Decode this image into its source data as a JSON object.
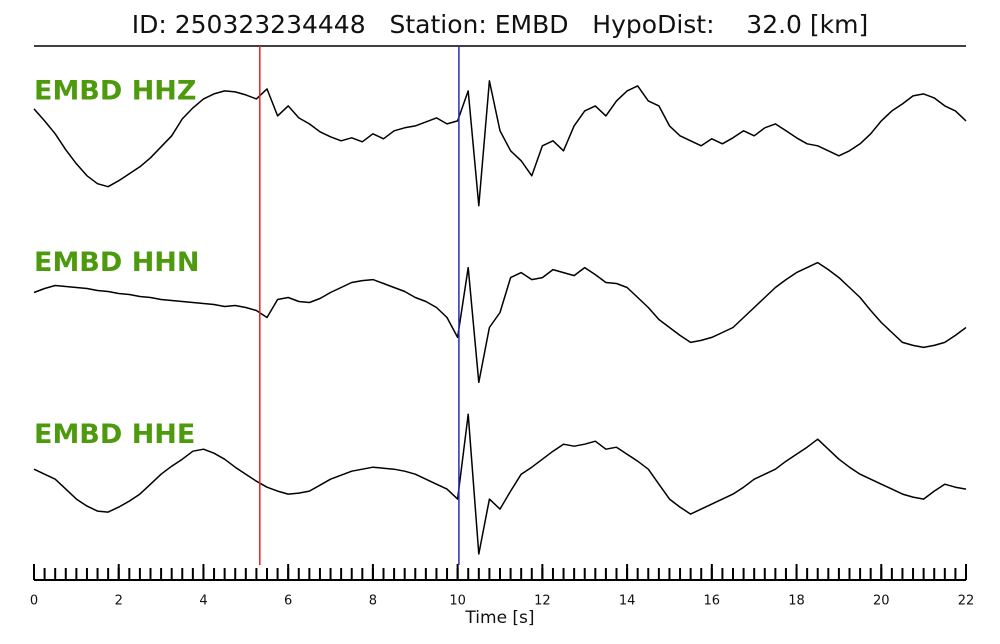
{
  "chart_data": {
    "type": "line",
    "title": "ID: 250323234448   Station: EMBD   HypoDist:    32.0 [km]",
    "xlabel": "Time [s]",
    "xlim": [
      0,
      22
    ],
    "xticks": [
      0,
      2,
      4,
      6,
      8,
      10,
      12,
      14,
      16,
      18,
      20,
      22
    ],
    "xminorticks": [
      0,
      0.25,
      0.5,
      0.75,
      1,
      1.25,
      1.5,
      1.75,
      2,
      2.25,
      2.5,
      2.75,
      3,
      3.25,
      3.5,
      3.75,
      4,
      4.25,
      4.5,
      4.75,
      5,
      5.25,
      5.5,
      5.75,
      6,
      6.25,
      6.5,
      6.75,
      7,
      7.25,
      7.5,
      7.75,
      8,
      8.25,
      8.5,
      8.75,
      9,
      9.25,
      9.5,
      9.75,
      10,
      10.25,
      10.5,
      10.75,
      11,
      11.25,
      11.5,
      11.75,
      12,
      12.25,
      12.5,
      12.75,
      13,
      13.25,
      13.5,
      13.75,
      14,
      14.25,
      14.5,
      14.75,
      15,
      15.25,
      15.5,
      15.75,
      16,
      16.25,
      16.5,
      16.75,
      17,
      17.25,
      17.5,
      17.75,
      18,
      18.25,
      18.5,
      18.75,
      19,
      19.25,
      19.5,
      19.75,
      20,
      20.25,
      20.5,
      20.75,
      21,
      21.25,
      21.5,
      21.75,
      22
    ],
    "ylim": [
      -86,
      86
    ],
    "x": [
      0,
      0.25,
      0.5,
      0.75,
      1,
      1.25,
      1.5,
      1.75,
      2,
      2.25,
      2.5,
      2.75,
      3,
      3.25,
      3.5,
      3.75,
      4,
      4.25,
      4.5,
      4.75,
      5,
      5.25,
      5.5,
      5.75,
      6,
      6.25,
      6.5,
      6.75,
      7,
      7.25,
      7.5,
      7.75,
      8,
      8.25,
      8.5,
      8.75,
      9,
      9.25,
      9.5,
      9.75,
      10,
      10.25,
      10.5,
      10.75,
      11,
      11.25,
      11.5,
      11.75,
      12,
      12.25,
      12.5,
      12.75,
      13,
      13.25,
      13.5,
      13.75,
      14,
      14.25,
      14.5,
      14.75,
      15,
      15.25,
      15.5,
      15.75,
      16,
      16.25,
      16.5,
      16.75,
      17,
      17.25,
      17.5,
      17.75,
      18,
      18.25,
      18.5,
      18.75,
      19,
      19.25,
      19.5,
      19.75,
      20,
      20.25,
      20.5,
      20.75,
      21,
      21.25,
      21.5,
      21.75,
      22
    ],
    "label_color": "#4d9a0f",
    "series": [
      {
        "name": "EMBD HHZ",
        "color": "#000000",
        "values": [
          27,
          15,
          2,
          -14,
          -28,
          -40,
          -48,
          -51,
          -45,
          -38,
          -31,
          -22,
          -11,
          0,
          17,
          28,
          37,
          42,
          45,
          44,
          41,
          37,
          47,
          20,
          30,
          18,
          12,
          4,
          -1,
          -5,
          -2,
          -6,
          2,
          -3,
          5,
          8,
          10,
          14,
          18,
          12,
          15,
          45,
          -70,
          55,
          5,
          -15,
          -25,
          -40,
          -10,
          -5,
          -15,
          10,
          25,
          30,
          20,
          35,
          45,
          50,
          35,
          30,
          10,
          0,
          -5,
          -10,
          -3,
          -8,
          -2,
          5,
          0,
          8,
          12,
          5,
          -2,
          -8,
          -10,
          -15,
          -20,
          -15,
          -8,
          2,
          15,
          25,
          32,
          40,
          42,
          38,
          30,
          25,
          15
        ]
      },
      {
        "name": "EMBD HHN",
        "color": "#000000",
        "values": [
          15,
          19,
          22,
          21,
          20,
          19,
          17,
          16,
          14,
          13,
          11,
          10,
          8,
          7,
          6,
          5,
          4,
          3,
          1,
          2,
          0,
          -3,
          -10,
          8,
          10,
          6,
          5,
          9,
          15,
          20,
          25,
          27,
          28,
          24,
          20,
          16,
          10,
          6,
          0,
          -10,
          -30,
          40,
          -75,
          -20,
          -5,
          30,
          35,
          28,
          30,
          38,
          35,
          32,
          40,
          33,
          25,
          24,
          20,
          10,
          0,
          -12,
          -20,
          -28,
          -35,
          -33,
          -30,
          -25,
          -20,
          -10,
          0,
          10,
          20,
          28,
          35,
          40,
          45,
          38,
          30,
          20,
          10,
          -3,
          -15,
          -25,
          -35,
          -38,
          -40,
          -38,
          -35,
          -28,
          -20
        ]
      },
      {
        "name": "EMBD HHE",
        "color": "#000000",
        "values": [
          10,
          5,
          0,
          -10,
          -20,
          -27,
          -32,
          -33,
          -28,
          -22,
          -15,
          -5,
          5,
          13,
          20,
          28,
          30,
          26,
          20,
          12,
          5,
          -2,
          -8,
          -12,
          -15,
          -14,
          -12,
          -6,
          0,
          4,
          8,
          10,
          12,
          11,
          10,
          8,
          5,
          0,
          -5,
          -10,
          -20,
          65,
          -75,
          -20,
          -30,
          -12,
          5,
          12,
          20,
          28,
          35,
          33,
          35,
          38,
          30,
          32,
          25,
          18,
          10,
          -5,
          -20,
          -28,
          -35,
          -30,
          -25,
          -20,
          -15,
          -8,
          0,
          5,
          10,
          18,
          25,
          32,
          40,
          30,
          20,
          12,
          5,
          0,
          -5,
          -10,
          -15,
          -18,
          -20,
          -12,
          -5,
          -8,
          -10
        ]
      }
    ],
    "markers": [
      {
        "x": 5.33,
        "color": "#e8211b"
      },
      {
        "x": 10.03,
        "color": "#2b2bb5"
      }
    ]
  }
}
